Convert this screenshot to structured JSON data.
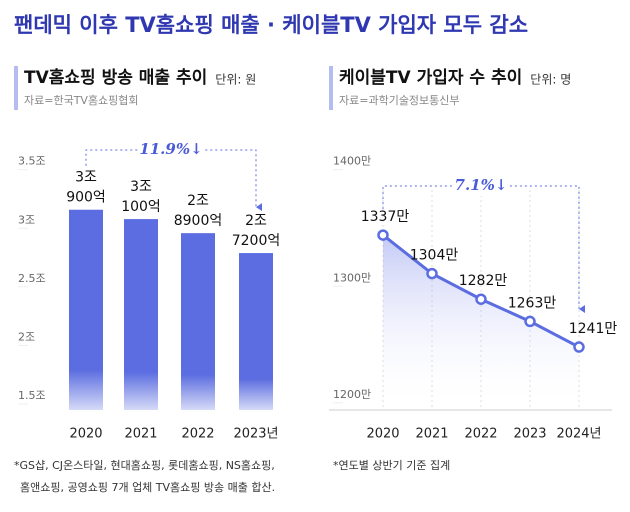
{
  "title": "팬데믹 이후 TV홈쇼핑 매출 · 케이블TV 가입자 모두 감소",
  "chart_data": [
    {
      "type": "bar",
      "title": "TV홈쇼핑 방송 매출 추이",
      "unit": "단위: 원",
      "source": "자료=한국TV홈쇼핑협회",
      "categories": [
        "2020",
        "2021",
        "2022",
        "2023년"
      ],
      "values": [
        3.09,
        3.01,
        2.89,
        2.72
      ],
      "value_labels": [
        [
          "3조",
          "900억"
        ],
        [
          "3조",
          "100억"
        ],
        [
          "2조",
          "8900억"
        ],
        [
          "2조",
          "7200억"
        ]
      ],
      "color": "#5b6de0",
      "ylim": [
        1.38,
        3.6
      ],
      "yticks": [
        {
          "value": 1.5,
          "label": "1.5조"
        },
        {
          "value": 2,
          "label": "2조"
        },
        {
          "value": 2.5,
          "label": "2.5조"
        },
        {
          "value": 3,
          "label": "3조"
        },
        {
          "value": 3.5,
          "label": "3.5조"
        }
      ],
      "annotation": "11.9%↓",
      "notes": [
        "*GS샵, CJ온스타일, 현대홈쇼핑, 롯데홈쇼핑, NS홈쇼핑,",
        "홈앤쇼핑, 공영쇼핑 7개 업체 TV홈쇼핑 방송 매출 합산."
      ]
    },
    {
      "type": "line",
      "title": "케이블TV 가입자 수 추이",
      "unit": "단위: 명",
      "source": "자료=과학기술정보통신부",
      "categories": [
        "2020",
        "2021",
        "2022",
        "2023",
        "2024년"
      ],
      "values": [
        1337,
        1304,
        1282,
        1263,
        1241
      ],
      "value_labels": [
        "1337만",
        "1304만",
        "1282만",
        "1263만",
        "1241만"
      ],
      "color": "#5b6de0",
      "ylim": [
        1187,
        1410
      ],
      "yticks": [
        {
          "value": 1200,
          "label": "1200만"
        },
        {
          "value": 1300,
          "label": "1300만"
        },
        {
          "value": 1400,
          "label": "1400만"
        }
      ],
      "annotation": "7.1%↓",
      "notes": [
        "*연도별 상반기 기준 집계"
      ]
    }
  ]
}
